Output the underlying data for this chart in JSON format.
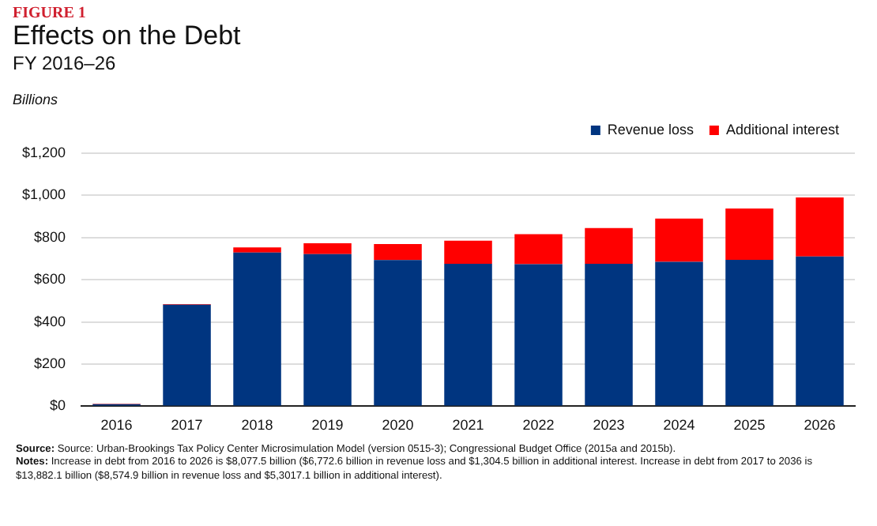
{
  "chart_data": {
    "type": "bar",
    "title": "Effects on the Debt",
    "subtitle": "FY 2016–26",
    "ylabel": "Billions",
    "annotations": [
      "FIGURE 1",
      "Source: Source: Urban-Brookings Tax Policy Center Microsimulation Model (version 0515-3); Congressional Budget Office (2015a and 2015b).",
      "Notes: Increase in debt from 2016 to 2026 is $8,077.5 billion ($6,772.6 billion in revenue loss and $1,304.5 billion in additional interest. Increase in debt from 2017 to 2036 is $13,882.1 billion ($8,574.9 billion in revenue loss and $5,3017.1 billion in additional interest)."
    ],
    "categories": [
      "2016",
      "2017",
      "2018",
      "2019",
      "2020",
      "2021",
      "2022",
      "2023",
      "2024",
      "2025",
      "2026"
    ],
    "series": [
      {
        "name": "Revenue loss",
        "color": "#003580",
        "values": [
          10,
          482,
          729,
          722,
          693,
          676,
          674,
          676,
          685,
          694,
          710
        ]
      },
      {
        "name": "Additional interest",
        "color": "#ff0000",
        "values": [
          2,
          3,
          24,
          51,
          76,
          109,
          142,
          169,
          205,
          244,
          280
        ]
      }
    ],
    "stacked": true,
    "ylim": [
      0,
      1200
    ],
    "yticks": [
      {
        "value": 0,
        "label": "$0"
      },
      {
        "value": 200,
        "label": "$200"
      },
      {
        "value": 400,
        "label": "$400"
      },
      {
        "value": 600,
        "label": "$600"
      },
      {
        "value": 800,
        "label": "$800"
      },
      {
        "value": 1000,
        "label": "$1,000"
      },
      {
        "value": 1200,
        "label": "$1,200"
      }
    ],
    "grid": "y",
    "legend": "top right"
  }
}
